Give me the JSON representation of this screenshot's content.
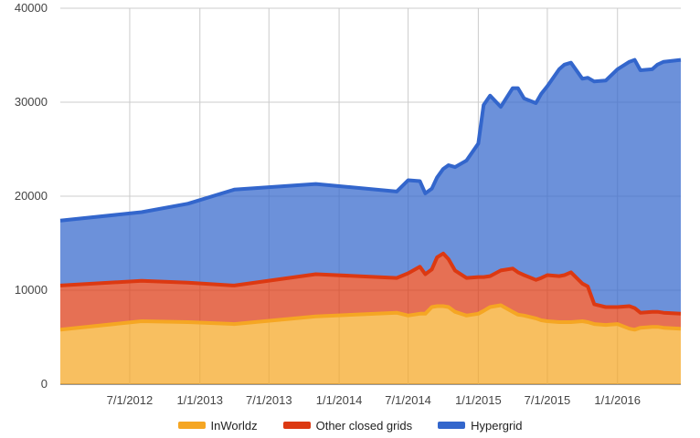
{
  "chart_data": {
    "type": "area",
    "stacked": true,
    "xlabel": "",
    "ylabel": "",
    "ylim": [
      0,
      40000
    ],
    "xlim": [
      "2012-01-01",
      "2016-06-15"
    ],
    "grid": true,
    "legend_position": "bottom",
    "y_ticks": [
      "0",
      "10000",
      "20000",
      "30000",
      "40000"
    ],
    "x_ticks": [
      {
        "label": "7/1/2012",
        "date": "2012-07-01"
      },
      {
        "label": "1/1/2013",
        "date": "2013-01-01"
      },
      {
        "label": "7/1/2013",
        "date": "2013-07-01"
      },
      {
        "label": "1/1/2014",
        "date": "2014-01-01"
      },
      {
        "label": "7/1/2014",
        "date": "2014-07-01"
      },
      {
        "label": "1/1/2015",
        "date": "2015-01-01"
      },
      {
        "label": "7/1/2015",
        "date": "2015-07-01"
      },
      {
        "label": "1/1/2016",
        "date": "2016-01-01"
      }
    ],
    "x": [
      "2012-01-01",
      "2012-08-01",
      "2012-12-01",
      "2013-04-01",
      "2013-11-01",
      "2014-06-01",
      "2014-07-01",
      "2014-08-01",
      "2014-08-15",
      "2014-09-01",
      "2014-09-15",
      "2014-10-01",
      "2014-10-15",
      "2014-11-01",
      "2014-12-01",
      "2015-01-01",
      "2015-01-15",
      "2015-02-01",
      "2015-03-01",
      "2015-04-01",
      "2015-04-15",
      "2015-05-01",
      "2015-06-01",
      "2015-06-15",
      "2015-07-01",
      "2015-08-01",
      "2015-08-15",
      "2015-09-01",
      "2015-10-01",
      "2015-10-15",
      "2015-11-01",
      "2015-12-01",
      "2016-01-01",
      "2016-02-01",
      "2016-02-15",
      "2016-03-01",
      "2016-04-01",
      "2016-04-15",
      "2016-05-01",
      "2016-06-15"
    ],
    "series": [
      {
        "name": "InWorldz",
        "color": "#f5a623",
        "values": [
          5800,
          6700,
          6600,
          6400,
          7200,
          7600,
          7300,
          7500,
          7500,
          8200,
          8300,
          8300,
          8200,
          7700,
          7300,
          7500,
          7800,
          8200,
          8400,
          7700,
          7400,
          7300,
          7000,
          6800,
          6700,
          6600,
          6600,
          6600,
          6700,
          6600,
          6400,
          6300,
          6400,
          5900,
          5800,
          6000,
          6100,
          6100,
          6000,
          5900
        ]
      },
      {
        "name": "Other closed grids",
        "color": "#dc3912",
        "values": [
          4700,
          4300,
          4200,
          4100,
          4500,
          3700,
          4500,
          5000,
          4200,
          4000,
          5200,
          5600,
          5100,
          4400,
          4000,
          3900,
          3600,
          3300,
          3700,
          4600,
          4500,
          4300,
          4100,
          4500,
          4900,
          4900,
          5000,
          5300,
          4000,
          3800,
          2100,
          1900,
          1800,
          2400,
          2300,
          1600,
          1600,
          1600,
          1600,
          1600
        ]
      },
      {
        "name": "Hypergrid",
        "color": "#3366cc",
        "values": [
          6900,
          7300,
          8400,
          10200,
          9600,
          9200,
          9900,
          9100,
          8600,
          8600,
          8500,
          9000,
          10000,
          11000,
          12500,
          14200,
          18300,
          19200,
          17400,
          19200,
          19600,
          18800,
          18800,
          19600,
          20100,
          22000,
          22400,
          22300,
          21800,
          22200,
          23700,
          24100,
          25300,
          26000,
          26400,
          25800,
          25800,
          26300,
          26700,
          27000
        ]
      }
    ]
  }
}
